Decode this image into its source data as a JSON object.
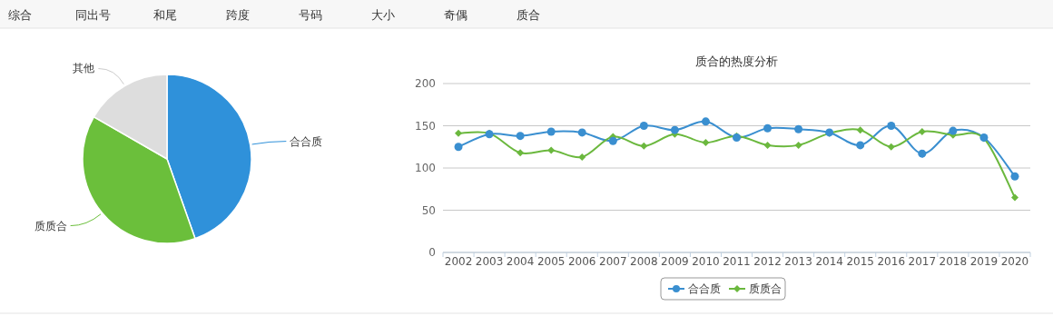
{
  "chart_data": [
    {
      "type": "other",
      "annotations": [
        "综合",
        "同出号",
        "和尾",
        "跨度",
        "号码",
        "大小",
        "奇偶",
        "质合"
      ]
    },
    {
      "type": "pie",
      "categories": [
        "合合质",
        "质质合",
        "其他"
      ],
      "values": [
        44.6,
        38.7,
        16.7
      ],
      "colors": [
        "#2f91da",
        "#6bbf3b",
        "#dddddd"
      ]
    },
    {
      "type": "line",
      "title": "质合的热度分析",
      "categories": [
        "2002",
        "2003",
        "2004",
        "2005",
        "2006",
        "2007",
        "2008",
        "2009",
        "2010",
        "2011",
        "2012",
        "2013",
        "2014",
        "2015",
        "2016",
        "2017",
        "2018",
        "2019",
        "2020"
      ],
      "series": [
        {
          "name": "合合质",
          "color": "#3a8fd0",
          "marker": "circle",
          "values": [
            125,
            140,
            138,
            143,
            142,
            132,
            150,
            145,
            155,
            136,
            147,
            146,
            142,
            127,
            150,
            117,
            144,
            136,
            90
          ]
        },
        {
          "name": "质质合",
          "color": "#6bb83e",
          "marker": "diamond",
          "values": [
            141,
            141,
            118,
            121,
            113,
            137,
            126,
            140,
            130,
            138,
            127,
            127,
            141,
            145,
            125,
            143,
            139,
            135,
            65
          ]
        }
      ],
      "ylim": [
        0,
        200
      ],
      "yticks": [
        0,
        50,
        100,
        150,
        200
      ],
      "grid": "y",
      "legend": "bottom"
    }
  ]
}
